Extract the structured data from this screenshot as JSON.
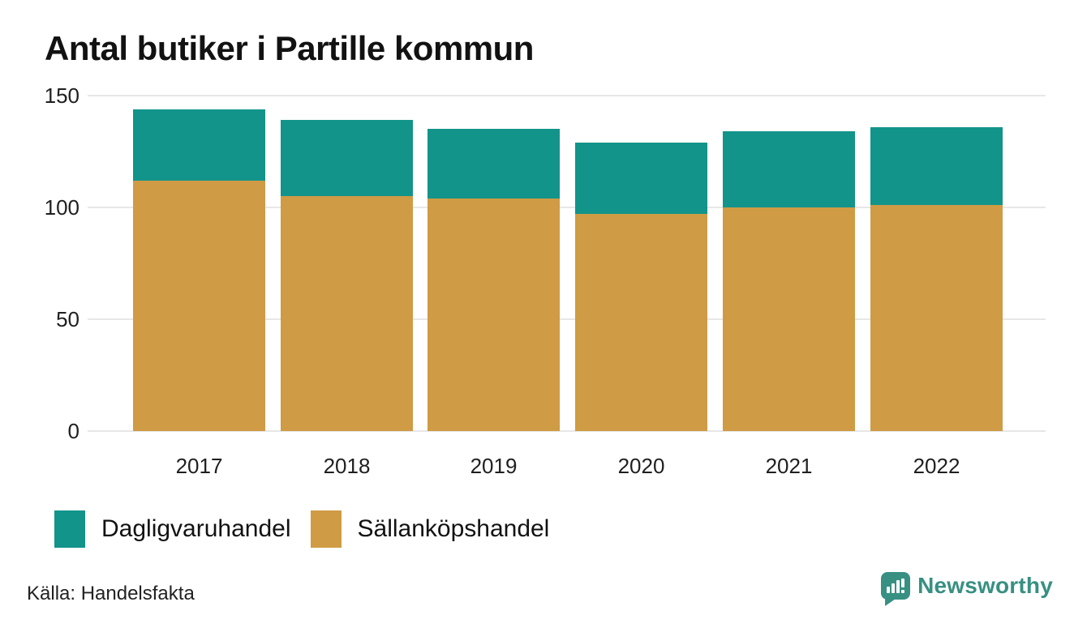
{
  "title": "Antal butiker i Partille kommun",
  "source": "Källa: Handelsfakta",
  "branding": {
    "name": "Newsworthy",
    "icon": "newsworthy-chart-bubble-icon",
    "brand_color": "#379082"
  },
  "colors": {
    "dagligvaruhandel": "#12948a",
    "sallankopshandel": "#d09b45",
    "gridline": "#e7e7e7",
    "text": "#121212"
  },
  "legend": {
    "items": [
      {
        "label": "Dagligvaruhandel",
        "color": "#12948a"
      },
      {
        "label": "Sällanköpshandel",
        "color": "#d09b45"
      }
    ]
  },
  "chart_data": {
    "type": "bar",
    "stacked": true,
    "title": "Antal butiker i Partille kommun",
    "categories": [
      "2017",
      "2018",
      "2019",
      "2020",
      "2021",
      "2022"
    ],
    "series": [
      {
        "name": "Dagligvaruhandel",
        "color": "#12948a",
        "values": [
          32,
          34,
          31,
          32,
          34,
          35
        ]
      },
      {
        "name": "Sällanköpshandel",
        "color": "#d09b45",
        "values": [
          112,
          105,
          104,
          97,
          100,
          101
        ]
      }
    ],
    "stack_order_bottom_to_top": [
      "Sällanköpshandel",
      "Dagligvaruhandel"
    ],
    "totals": [
      144,
      139,
      135,
      129,
      134,
      136
    ],
    "xlabel": "",
    "ylabel": "",
    "ylim": [
      0,
      150
    ],
    "yticks": [
      0,
      50,
      100,
      150
    ],
    "grid": true,
    "legend_position": "bottom-left",
    "source": "Källa: Handelsfakta"
  }
}
